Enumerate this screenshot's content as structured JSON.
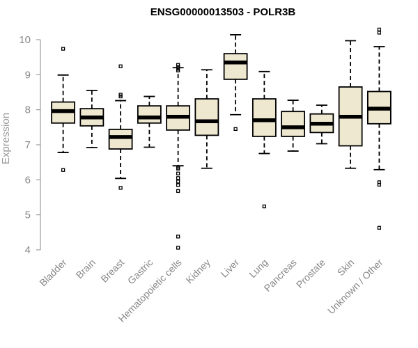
{
  "chart_data": {
    "type": "boxplot",
    "title": "ENSG00000013503 - POLR3B",
    "xlabel": "",
    "ylabel": "Expression",
    "ylim": [
      3.9,
      10.35
    ],
    "yticks": [
      4,
      5,
      6,
      7,
      8,
      9,
      10
    ],
    "box_color": "#efe8d0",
    "categories": [
      "Bladder",
      "Brain",
      "Breast",
      "Gastric",
      "Hematopoietic cells",
      "Kidney",
      "Liver",
      "Lung",
      "Pancreas",
      "Prostate",
      "Skin",
      "Unknown / Other"
    ],
    "boxes": [
      {
        "category": "Bladder",
        "whisker_low": 6.78,
        "q1": 7.62,
        "median": 7.96,
        "q3": 8.22,
        "whisker_high": 8.99,
        "outliers": [
          9.74,
          6.28
        ]
      },
      {
        "category": "Brain",
        "whisker_low": 6.92,
        "q1": 7.54,
        "median": 7.78,
        "q3": 8.03,
        "whisker_high": 8.55,
        "outliers": []
      },
      {
        "category": "Breast",
        "whisker_low": 6.04,
        "q1": 6.88,
        "median": 7.22,
        "q3": 7.44,
        "whisker_high": 8.26,
        "outliers": [
          9.24,
          8.43,
          8.38,
          5.77
        ]
      },
      {
        "category": "Gastric",
        "whisker_low": 6.93,
        "q1": 7.62,
        "median": 7.78,
        "q3": 8.11,
        "whisker_high": 8.38,
        "outliers": []
      },
      {
        "category": "Hematopoietic cells",
        "whisker_low": 6.4,
        "q1": 7.42,
        "median": 7.8,
        "q3": 8.11,
        "whisker_high": 9.2,
        "outliers": [
          9.28,
          9.22,
          9.12,
          6.35,
          6.32,
          6.18,
          6.05,
          5.95,
          5.85,
          5.68,
          4.38,
          4.06
        ]
      },
      {
        "category": "Kidney",
        "whisker_low": 6.33,
        "q1": 7.27,
        "median": 7.67,
        "q3": 8.31,
        "whisker_high": 9.14,
        "outliers": []
      },
      {
        "category": "Liver",
        "whisker_low": 7.86,
        "q1": 8.87,
        "median": 9.35,
        "q3": 9.6,
        "whisker_high": 10.14,
        "outliers": [
          7.45
        ]
      },
      {
        "category": "Lung",
        "whisker_low": 6.75,
        "q1": 7.24,
        "median": 7.7,
        "q3": 8.31,
        "whisker_high": 9.09,
        "outliers": [
          5.24
        ]
      },
      {
        "category": "Pancreas",
        "whisker_low": 6.82,
        "q1": 7.24,
        "median": 7.5,
        "q3": 7.95,
        "whisker_high": 8.27,
        "outliers": []
      },
      {
        "category": "Prostate",
        "whisker_low": 7.03,
        "q1": 7.35,
        "median": 7.6,
        "q3": 7.88,
        "whisker_high": 8.13,
        "outliers": []
      },
      {
        "category": "Skin",
        "whisker_low": 6.33,
        "q1": 6.97,
        "median": 7.8,
        "q3": 8.65,
        "whisker_high": 9.97,
        "outliers": []
      },
      {
        "category": "Unknown / Other",
        "whisker_low": 6.29,
        "q1": 7.6,
        "median": 8.03,
        "q3": 8.52,
        "whisker_high": 9.8,
        "outliers": [
          10.29,
          10.2,
          5.93,
          5.86,
          4.63
        ]
      }
    ]
  }
}
